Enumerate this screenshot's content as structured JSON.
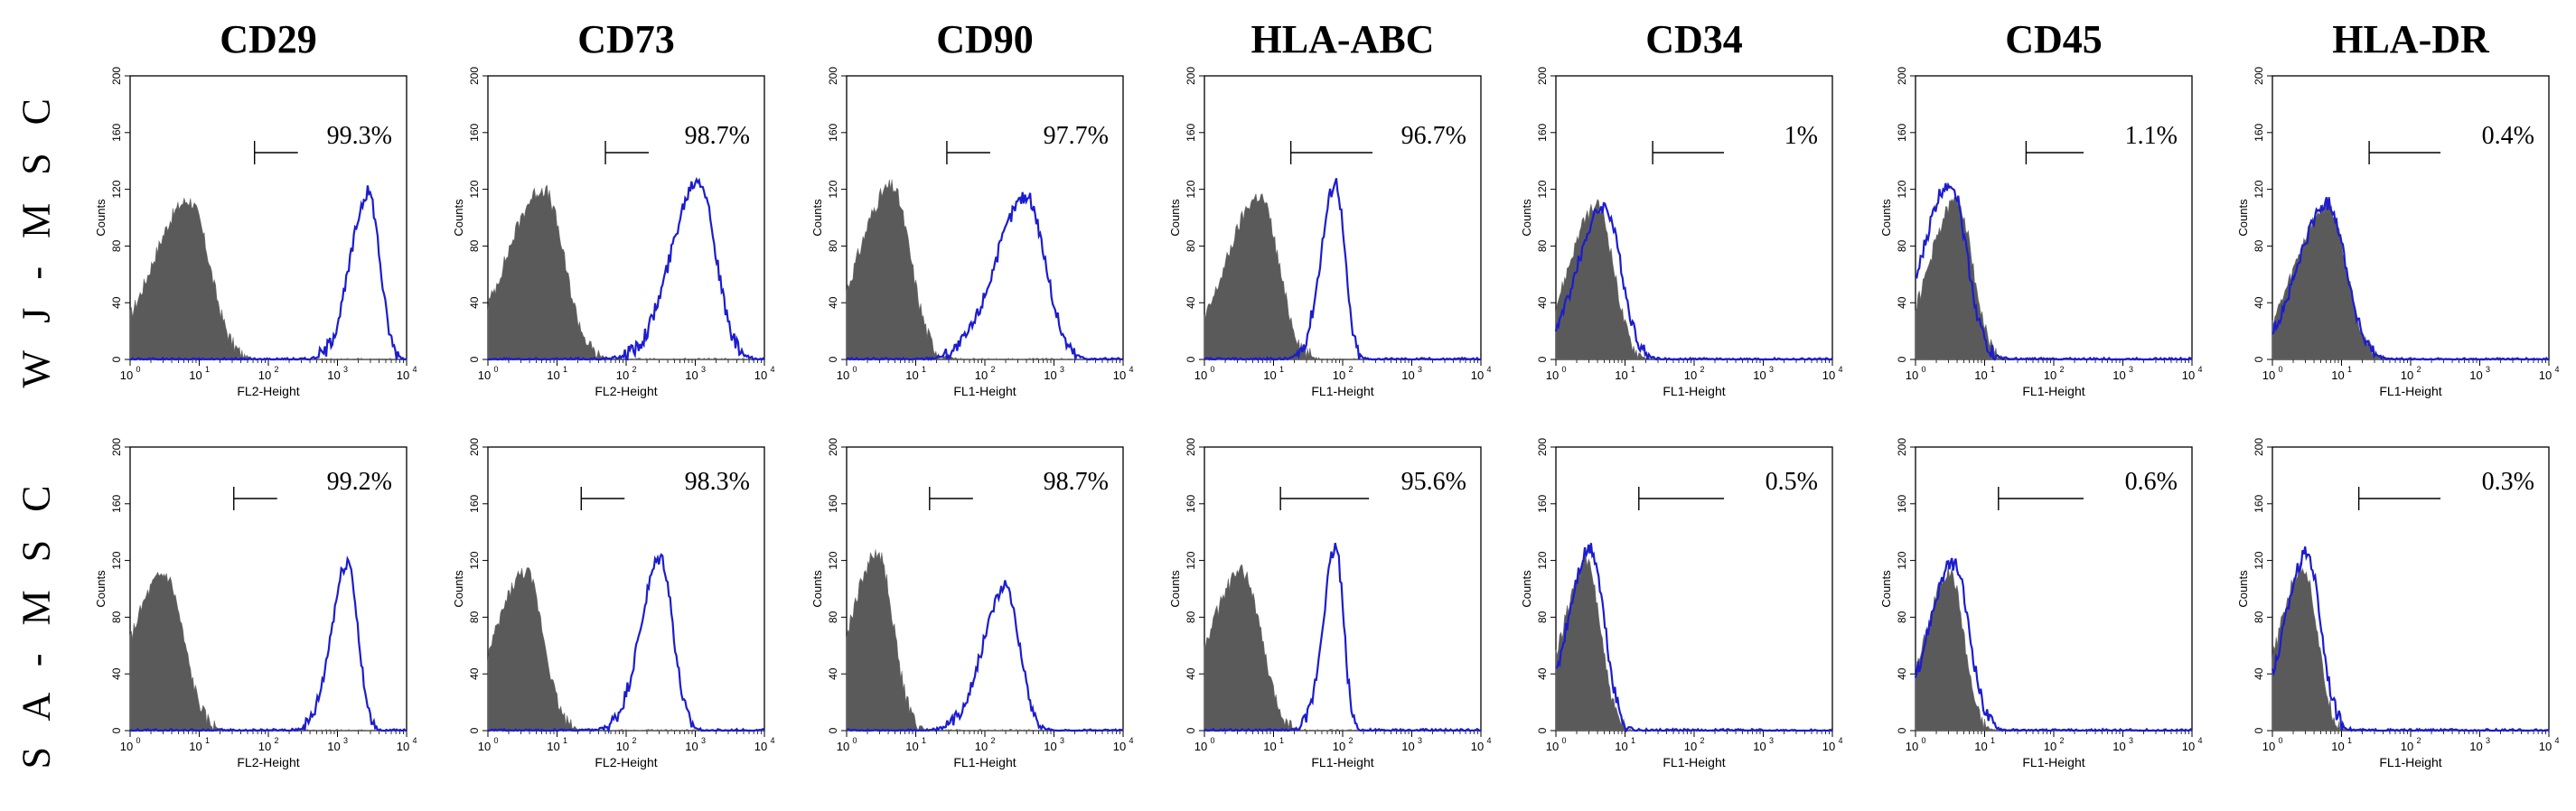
{
  "chart_data": {
    "type": "histogram-grid",
    "columns": [
      "CD29",
      "CD73",
      "CD90",
      "HLA-ABC",
      "CD34",
      "CD45",
      "HLA-DR"
    ],
    "rows": [
      "W J - M S C",
      "S A - M S C"
    ],
    "y_axis": {
      "label": "Counts",
      "range": [
        0,
        200
      ],
      "ticks": [
        "0",
        "40",
        "80",
        "120",
        "160",
        "200"
      ]
    },
    "x_axis": {
      "scale": "log",
      "range": [
        1,
        10000
      ],
      "ticks": [
        "10",
        "10",
        "10",
        "10",
        "10"
      ],
      "exponents": [
        "0",
        "1",
        "2",
        "3",
        "4"
      ]
    },
    "colors": {
      "isotype": "#5a5a5a",
      "sample": "#1c1ccf"
    },
    "panels": [
      {
        "row": 0,
        "col": 0,
        "marker": "CD29",
        "xlabel": "FL2-Height",
        "percent": "99.3%",
        "gate_start": 1.8,
        "iso": {
          "peak": 0.85,
          "width": 0.33,
          "height": 112
        },
        "sample": {
          "peak": 3.45,
          "width": 0.2,
          "height": 118
        }
      },
      {
        "row": 0,
        "col": 1,
        "marker": "CD73",
        "xlabel": "FL2-Height",
        "percent": "98.7%",
        "gate_start": 1.7,
        "iso": {
          "peak": 0.8,
          "width": 0.33,
          "height": 120
        },
        "sample": {
          "peak": 3.05,
          "width": 0.3,
          "height": 128
        }
      },
      {
        "row": 0,
        "col": 2,
        "marker": "CD90",
        "xlabel": "FL1-Height",
        "percent": "97.7%",
        "gate_start": 1.45,
        "iso": {
          "peak": 0.65,
          "width": 0.3,
          "height": 122
        },
        "sample": {
          "peak": 2.6,
          "width": 0.34,
          "height": 115
        }
      },
      {
        "row": 0,
        "col": 3,
        "marker": "HLA-ABC",
        "xlabel": "FL1-Height",
        "percent": "96.7%",
        "gate_start": 1.25,
        "iso": {
          "peak": 0.8,
          "width": 0.3,
          "height": 115
        },
        "sample": {
          "peak": 1.9,
          "width": 0.16,
          "height": 125
        }
      },
      {
        "row": 0,
        "col": 4,
        "marker": "CD34",
        "xlabel": "FL1-Height",
        "percent": "1%",
        "gate_start": 1.4,
        "iso": {
          "peak": 0.6,
          "width": 0.26,
          "height": 108
        },
        "sample": {
          "peak": 0.7,
          "width": 0.3,
          "height": 108
        }
      },
      {
        "row": 0,
        "col": 5,
        "marker": "CD45",
        "xlabel": "FL1-Height",
        "percent": "1.1%",
        "gate_start": 1.6,
        "iso": {
          "peak": 0.6,
          "width": 0.25,
          "height": 112
        },
        "sample": {
          "peak": 0.5,
          "width": 0.3,
          "height": 125
        }
      },
      {
        "row": 0,
        "col": 6,
        "marker": "HLA-DR",
        "xlabel": "FL1-Height",
        "percent": "0.4%",
        "gate_start": 1.4,
        "iso": {
          "peak": 0.8,
          "width": 0.3,
          "height": 108
        },
        "sample": {
          "peak": 0.8,
          "width": 0.33,
          "height": 110
        }
      },
      {
        "row": 1,
        "col": 0,
        "marker": "CD29",
        "xlabel": "FL2-Height",
        "percent": "99.2%",
        "gate_start": 1.5,
        "iso": {
          "peak": 0.5,
          "width": 0.3,
          "height": 110
        },
        "sample": {
          "peak": 3.15,
          "width": 0.18,
          "height": 120
        }
      },
      {
        "row": 1,
        "col": 1,
        "marker": "CD73",
        "xlabel": "FL2-Height",
        "percent": "98.3%",
        "gate_start": 1.35,
        "iso": {
          "peak": 0.55,
          "width": 0.28,
          "height": 112
        },
        "sample": {
          "peak": 2.5,
          "width": 0.22,
          "height": 122
        }
      },
      {
        "row": 1,
        "col": 2,
        "marker": "CD90",
        "xlabel": "FL1-Height",
        "percent": "98.7%",
        "gate_start": 1.2,
        "iso": {
          "peak": 0.45,
          "width": 0.25,
          "height": 125
        },
        "sample": {
          "peak": 2.3,
          "width": 0.25,
          "height": 102
        }
      },
      {
        "row": 1,
        "col": 3,
        "marker": "HLA-ABC",
        "xlabel": "FL1-Height",
        "percent": "95.6%",
        "gate_start": 1.1,
        "iso": {
          "peak": 0.55,
          "width": 0.3,
          "height": 112
        },
        "sample": {
          "peak": 1.9,
          "width": 0.14,
          "height": 130
        }
      },
      {
        "row": 1,
        "col": 4,
        "marker": "CD34",
        "xlabel": "FL1-Height",
        "percent": "0.5%",
        "gate_start": 1.2,
        "iso": {
          "peak": 0.45,
          "width": 0.22,
          "height": 118
        },
        "sample": {
          "peak": 0.5,
          "width": 0.25,
          "height": 128
        }
      },
      {
        "row": 1,
        "col": 5,
        "marker": "CD45",
        "xlabel": "FL1-Height",
        "percent": "0.6%",
        "gate_start": 1.2,
        "iso": {
          "peak": 0.5,
          "width": 0.22,
          "height": 112
        },
        "sample": {
          "peak": 0.55,
          "width": 0.28,
          "height": 118
        }
      },
      {
        "row": 1,
        "col": 6,
        "marker": "HLA-DR",
        "xlabel": "FL1-Height",
        "percent": "0.3%",
        "gate_start": 1.25,
        "iso": {
          "peak": 0.45,
          "width": 0.22,
          "height": 115
        },
        "sample": {
          "peak": 0.5,
          "width": 0.25,
          "height": 125
        }
      }
    ]
  }
}
